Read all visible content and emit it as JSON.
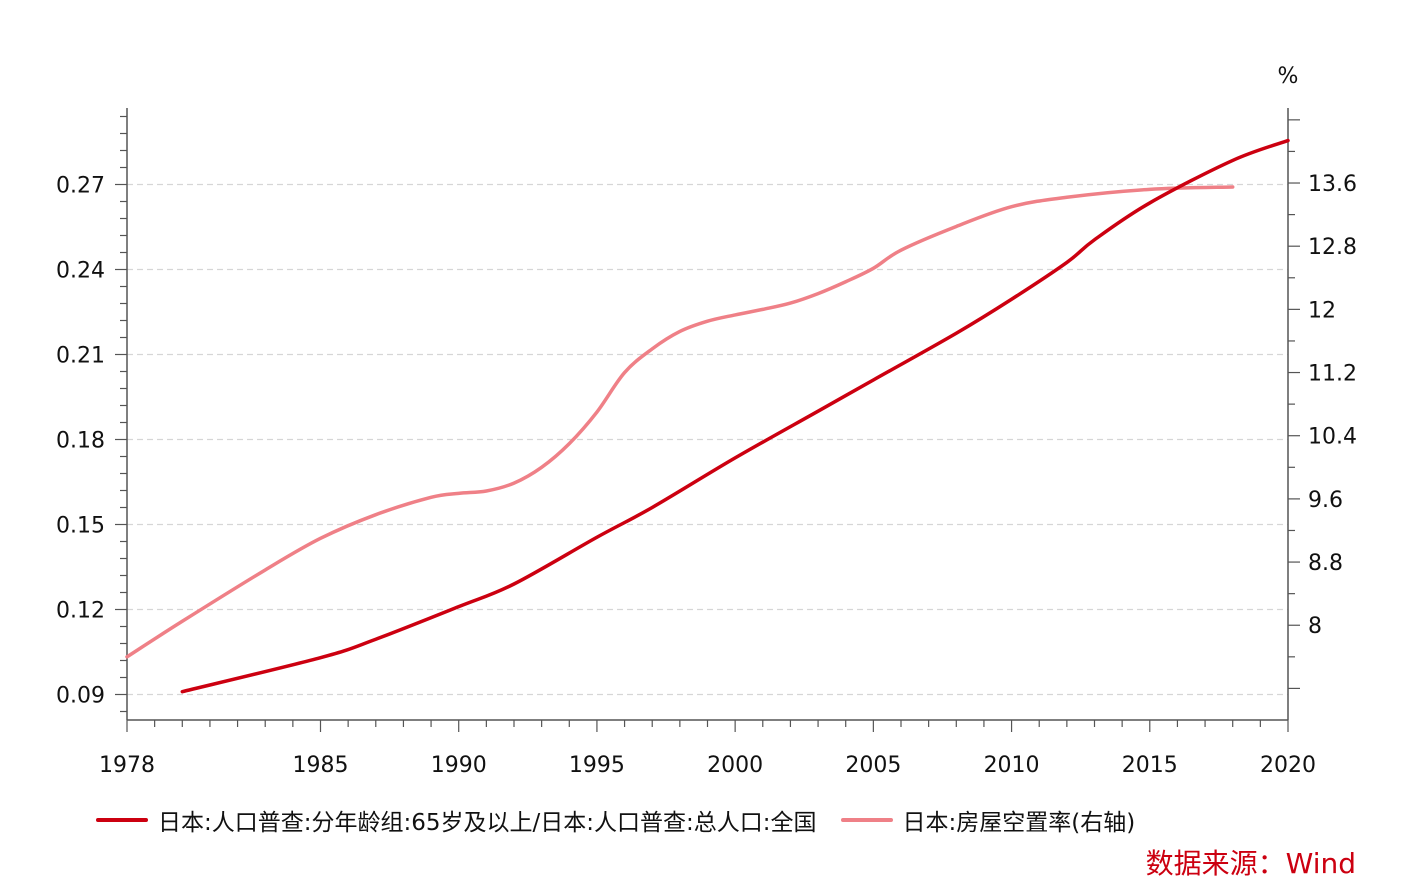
{
  "chart_data": {
    "type": "line",
    "x_ticks": [
      "1978",
      "1985",
      "1990",
      "1995",
      "2000",
      "2005",
      "2010",
      "2015",
      "2020"
    ],
    "xlim": [
      1978,
      2020
    ],
    "y_left": {
      "ticks": [
        "0.09",
        "0.12",
        "0.15",
        "0.18",
        "0.21",
        "0.24",
        "0.27"
      ],
      "ylim": [
        0.081,
        0.297
      ]
    },
    "y_right": {
      "unit": "%",
      "ticks": [
        "8",
        "8.8",
        "9.6",
        "10.4",
        "11.2",
        "12",
        "12.8",
        "13.6"
      ],
      "ylim": [
        6.8,
        14.55
      ]
    },
    "series": [
      {
        "name": "日本:人口普查:分年龄组:65岁及以上/日本:人口普查:总人口:全国",
        "axis": "left",
        "color": "#cc0010",
        "points": [
          [
            1980,
            0.091
          ],
          [
            1985,
            0.103
          ],
          [
            1987,
            0.1095
          ],
          [
            1990,
            0.121
          ],
          [
            1992,
            0.129
          ],
          [
            1995,
            0.1455
          ],
          [
            1997,
            0.156
          ],
          [
            2000,
            0.1735
          ],
          [
            2003,
            0.19
          ],
          [
            2005,
            0.201
          ],
          [
            2008,
            0.2175
          ],
          [
            2010,
            0.2295
          ],
          [
            2012,
            0.2425
          ],
          [
            2013,
            0.2505
          ],
          [
            2015,
            0.2635
          ],
          [
            2018,
            0.2785
          ],
          [
            2020,
            0.2855
          ]
        ]
      },
      {
        "name": "日本:房屋空置率(右轴)",
        "axis": "right",
        "color": "#ef8087",
        "points": [
          [
            1978,
            7.6
          ],
          [
            1980,
            8.05
          ],
          [
            1983,
            8.7
          ],
          [
            1985,
            9.1
          ],
          [
            1987,
            9.4
          ],
          [
            1989,
            9.62
          ],
          [
            1990,
            9.67
          ],
          [
            1991,
            9.7
          ],
          [
            1992,
            9.8
          ],
          [
            1993,
            10.0
          ],
          [
            1994,
            10.3
          ],
          [
            1995,
            10.7
          ],
          [
            1996,
            11.2
          ],
          [
            1997,
            11.5
          ],
          [
            1998,
            11.72
          ],
          [
            1999,
            11.85
          ],
          [
            2000,
            11.93
          ],
          [
            2001,
            12.0
          ],
          [
            2002,
            12.08
          ],
          [
            2003,
            12.2
          ],
          [
            2004,
            12.35
          ],
          [
            2005,
            12.52
          ],
          [
            2006,
            12.75
          ],
          [
            2008,
            13.05
          ],
          [
            2010,
            13.3
          ],
          [
            2012,
            13.42
          ],
          [
            2015,
            13.52
          ],
          [
            2018,
            13.55
          ]
        ]
      }
    ]
  },
  "legend": {
    "items": [
      {
        "label": "日本:人口普查:分年龄组:65岁及以上/日本:人口普查:总人口:全国",
        "color": "#cc0010"
      },
      {
        "label": "日本:房屋空置率(右轴)",
        "color": "#ef8087"
      }
    ]
  },
  "source": "数据来源：Wind"
}
